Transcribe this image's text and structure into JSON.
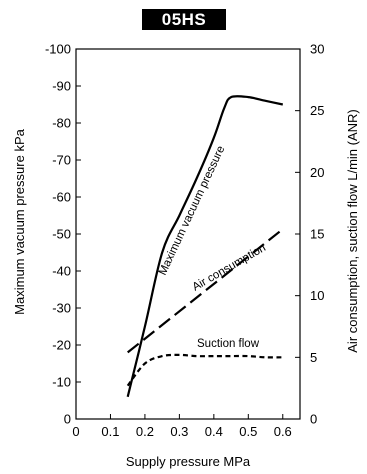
{
  "chart_data": {
    "type": "line",
    "title": "05HS",
    "xlabel": "Supply pressure MPa",
    "ylabel_left": "Maximum vacuum pressure  kPa",
    "ylabel_right": "Air consumption, suction flow L/min (ANR)",
    "xlim": [
      0,
      0.65
    ],
    "ylim_left": [
      0,
      -100
    ],
    "ylim_right": [
      0,
      30
    ],
    "x_ticks": [
      "0",
      "0.1",
      "0.2",
      "0.3",
      "0.4",
      "0.5",
      "0.6"
    ],
    "y_left_ticks": [
      "0",
      "-10",
      "-20",
      "-30",
      "-40",
      "-50",
      "-60",
      "-70",
      "-80",
      "-90",
      "-100"
    ],
    "y_right_ticks": [
      "0",
      "5",
      "10",
      "15",
      "20",
      "25",
      "30"
    ],
    "grid": false,
    "series": [
      {
        "name": "Maximum vacuum pressure",
        "axis": "left",
        "style": "solid",
        "x": [
          0.15,
          0.2,
          0.25,
          0.3,
          0.35,
          0.4,
          0.43,
          0.45,
          0.5,
          0.55,
          0.6
        ],
        "y": [
          -6,
          -25,
          -45,
          -55,
          -65,
          -76,
          -84,
          -87,
          -87,
          -86,
          -85
        ]
      },
      {
        "name": "Air consumption",
        "axis": "right",
        "style": "dashed",
        "x": [
          0.15,
          0.6
        ],
        "y": [
          5.4,
          15.4
        ]
      },
      {
        "name": "Suction flow",
        "axis": "right",
        "style": "dotted",
        "x": [
          0.15,
          0.2,
          0.25,
          0.3,
          0.35,
          0.4,
          0.45,
          0.5,
          0.55,
          0.6
        ],
        "y": [
          2.7,
          4.5,
          5.1,
          5.2,
          5.1,
          5.1,
          5.1,
          5.1,
          5.0,
          5.0
        ]
      }
    ],
    "annotations": [
      "Maximum vacuum pressure",
      "Air consumption",
      "Suction flow"
    ]
  }
}
